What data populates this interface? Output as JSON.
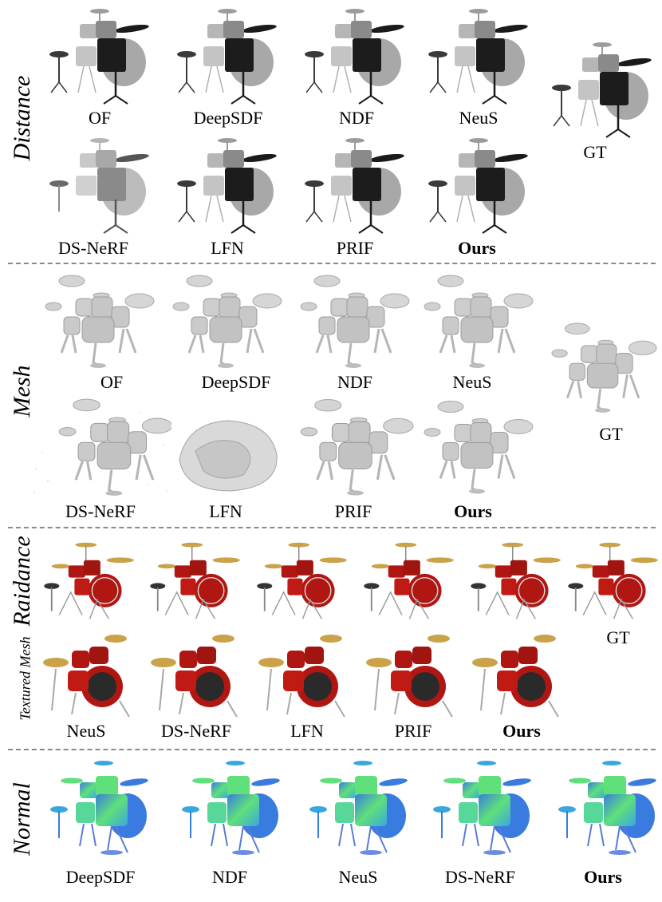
{
  "sections": {
    "distance": {
      "label": "Distance",
      "row1": [
        "OF",
        "DeepSDF",
        "NDF",
        "NeuS"
      ],
      "row2": [
        "DS-NeRF",
        "LFN",
        "PRIF",
        "Ours"
      ],
      "gt": "GT"
    },
    "mesh": {
      "label": "Mesh",
      "row1": [
        "OF",
        "DeepSDF",
        "NDF",
        "NeuS"
      ],
      "row2": [
        "DS-NeRF",
        "LFN",
        "PRIF",
        "Ours"
      ],
      "gt": "GT"
    },
    "radiance": {
      "label": "Raidance",
      "sublabel": "Textured Mesh",
      "row2": [
        "NeuS",
        "DS-NeRF",
        "LFN",
        "PRIF",
        "Ours"
      ],
      "gt": "GT"
    },
    "normal": {
      "label": "Normal",
      "row1": [
        "DeepSDF",
        "NDF",
        "NeuS",
        "DS-NeRF",
        "Ours"
      ]
    }
  },
  "colors": {
    "divider": "#8a8a8a",
    "distance_dark": "#1a1a1a",
    "distance_light": "#a8a8a8",
    "mesh": "#c9c9c9",
    "drum_red": "#b01612",
    "cymbal_gold": "#c9a24a",
    "normal_green": "#5fe07a",
    "normal_blue": "#3a7be0"
  }
}
